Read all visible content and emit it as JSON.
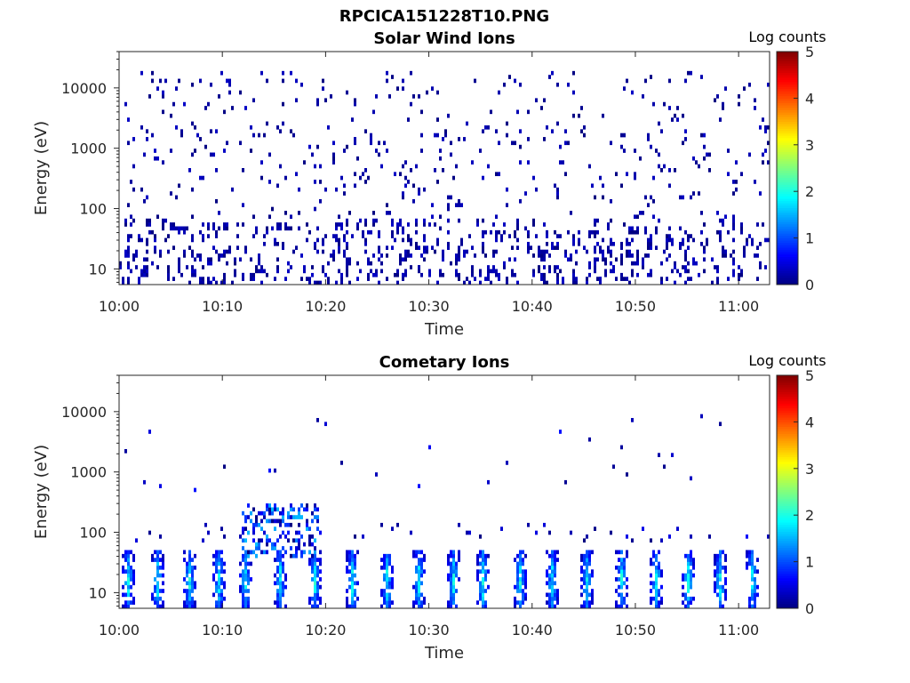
{
  "figure_title": "RPCICA151228T10.PNG",
  "colormap": [
    "#00007f",
    "#0000ff",
    "#007fff",
    "#00ffff",
    "#7fff7f",
    "#ffff00",
    "#ff7f00",
    "#ff0000",
    "#7f0000"
  ],
  "chart_data": [
    {
      "type": "heatmap",
      "title": "Solar Wind Ions",
      "xlabel": "Time",
      "ylabel": "Energy (eV)",
      "y_scale": "log",
      "ylim": [
        5.5,
        40000
      ],
      "x_range_minutes": [
        0,
        63
      ],
      "x_ticks": [
        {
          "minute": 0,
          "label": "10:00"
        },
        {
          "minute": 10,
          "label": "10:10"
        },
        {
          "minute": 20,
          "label": "10:20"
        },
        {
          "minute": 30,
          "label": "10:30"
        },
        {
          "minute": 40,
          "label": "10:40"
        },
        {
          "minute": 50,
          "label": "10:50"
        },
        {
          "minute": 60,
          "label": "11:00"
        }
      ],
      "y_ticks": [
        {
          "value": 10,
          "label": "10"
        },
        {
          "value": 100,
          "label": "100"
        },
        {
          "value": 1000,
          "label": "1000"
        },
        {
          "value": 10000,
          "label": "10000"
        }
      ],
      "colorbar": {
        "label": "Log counts",
        "range": [
          0,
          5
        ],
        "ticks": [
          "0",
          "1",
          "2",
          "3",
          "4",
          "5"
        ]
      },
      "grid": false,
      "description_of_data": "sparse single-count (log counts ~0) speckles spread across 10 eV - 20 keV over the whole interval",
      "density": 0.09,
      "low_energy_density": 0.22,
      "max_level": 0.35,
      "seed": 7
    },
    {
      "type": "heatmap",
      "title": "Cometary Ions",
      "xlabel": "Time",
      "ylabel": "Energy (eV)",
      "y_scale": "log",
      "ylim": [
        5.5,
        40000
      ],
      "x_range_minutes": [
        0,
        63
      ],
      "x_ticks": [
        {
          "minute": 0,
          "label": "10:00"
        },
        {
          "minute": 10,
          "label": "10:10"
        },
        {
          "minute": 20,
          "label": "10:20"
        },
        {
          "minute": 30,
          "label": "10:30"
        },
        {
          "minute": 40,
          "label": "10:40"
        },
        {
          "minute": 50,
          "label": "10:50"
        },
        {
          "minute": 60,
          "label": "11:00"
        }
      ],
      "y_ticks": [
        {
          "value": 10,
          "label": "10"
        },
        {
          "value": 100,
          "label": "100"
        },
        {
          "value": 1000,
          "label": "1000"
        },
        {
          "value": 10000,
          "label": "10000"
        }
      ],
      "colorbar": {
        "label": "Log counts",
        "range": [
          0,
          5
        ],
        "ticks": [
          "0",
          "1",
          "2",
          "3",
          "4",
          "5"
        ]
      },
      "grid": false,
      "burst_minutes": [
        0.8,
        3.5,
        6.8,
        9.5,
        12.2,
        15.5,
        18.8,
        22.5,
        25.8,
        28.8,
        32.2,
        35.2,
        38.8,
        41.8,
        45.2,
        48.5,
        51.8,
        55.0,
        58.2,
        61.2
      ],
      "burst_energy_range_eV": [
        6,
        40
      ],
      "burst_peak_log_counts": 1.8,
      "extended_event_minutes": [
        14.5,
        16.5
      ],
      "extended_event_max_energy_eV": 300,
      "high_energy_sparse_range_eV": [
        500,
        9000
      ],
      "seed": 19
    }
  ]
}
